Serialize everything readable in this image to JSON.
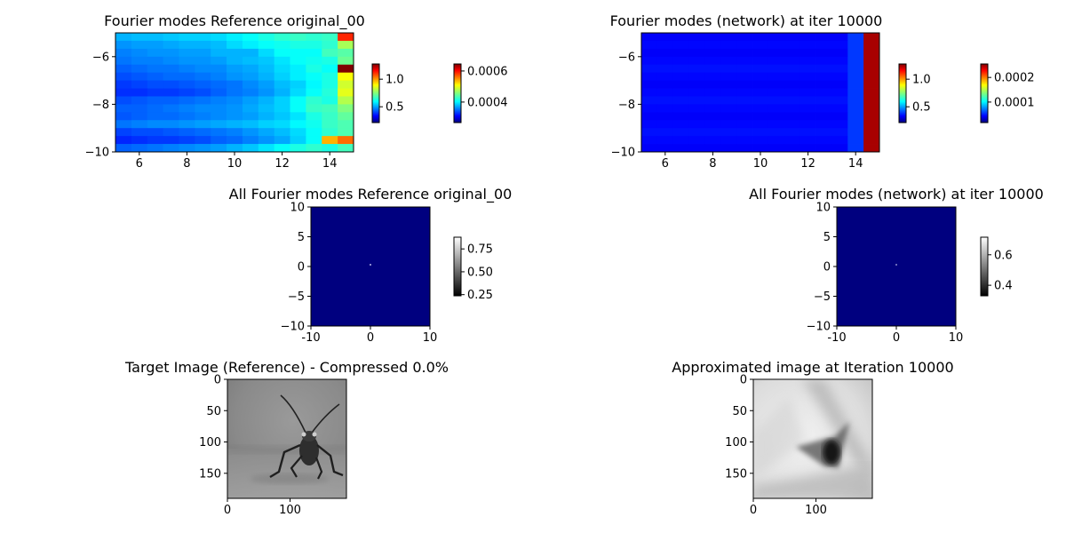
{
  "figure": {
    "panel_titles": {
      "ref_modes": "Fourier modes Reference original_00",
      "net_modes": "Fourier modes (network) at iter 10000",
      "ref_all": "All Fourier modes Reference original_00",
      "net_all": "All Fourier modes (network) at iter 10000",
      "ref_img": "Target Image (Reference) - Compressed 0.0%",
      "net_img": "Approximated image at Iteration 10000"
    },
    "colormap_modes": "jet",
    "colormap_gray": "gray",
    "background_blue": "#00007f"
  },
  "chart_data": [
    {
      "type": "heatmap",
      "id": "ref_modes",
      "title": "Fourier modes Reference original_00",
      "xlim": [
        5,
        15
      ],
      "ylim": [
        -10,
        -5
      ],
      "xticks": [
        6,
        8,
        10,
        12,
        14
      ],
      "yticks": [
        -6,
        -8,
        -10
      ],
      "cols": 15,
      "rows": 15,
      "grid": [
        [
          0.3,
          0.31,
          0.31,
          0.32,
          0.33,
          0.33,
          0.34,
          0.36,
          0.38,
          0.4,
          0.42,
          0.43,
          0.42,
          0.43,
          0.84
        ],
        [
          0.27,
          0.28,
          0.28,
          0.29,
          0.3,
          0.3,
          0.31,
          0.34,
          0.36,
          0.38,
          0.39,
          0.4,
          0.4,
          0.42,
          0.54
        ],
        [
          0.25,
          0.26,
          0.27,
          0.27,
          0.28,
          0.28,
          0.3,
          0.3,
          0.3,
          0.34,
          0.38,
          0.38,
          0.38,
          0.44,
          0.46
        ],
        [
          0.24,
          0.25,
          0.25,
          0.26,
          0.27,
          0.27,
          0.28,
          0.3,
          0.31,
          0.32,
          0.35,
          0.38,
          0.39,
          0.4,
          0.48
        ],
        [
          0.22,
          0.23,
          0.24,
          0.24,
          0.25,
          0.26,
          0.26,
          0.28,
          0.29,
          0.31,
          0.34,
          0.36,
          0.4,
          0.38,
          1.0
        ],
        [
          0.2,
          0.21,
          0.22,
          0.23,
          0.23,
          0.24,
          0.25,
          0.27,
          0.28,
          0.3,
          0.33,
          0.36,
          0.38,
          0.4,
          0.62
        ],
        [
          0.18,
          0.19,
          0.2,
          0.2,
          0.21,
          0.22,
          0.23,
          0.24,
          0.26,
          0.28,
          0.31,
          0.33,
          0.37,
          0.4,
          0.58
        ],
        [
          0.17,
          0.17,
          0.18,
          0.18,
          0.19,
          0.2,
          0.22,
          0.24,
          0.25,
          0.27,
          0.3,
          0.34,
          0.38,
          0.41,
          0.6
        ],
        [
          0.2,
          0.21,
          0.22,
          0.22,
          0.23,
          0.24,
          0.25,
          0.26,
          0.28,
          0.3,
          0.33,
          0.38,
          0.42,
          0.4,
          0.55
        ],
        [
          0.22,
          0.22,
          0.23,
          0.24,
          0.25,
          0.26,
          0.26,
          0.27,
          0.29,
          0.31,
          0.33,
          0.38,
          0.43,
          0.44,
          0.5
        ],
        [
          0.21,
          0.22,
          0.23,
          0.23,
          0.24,
          0.25,
          0.26,
          0.27,
          0.28,
          0.3,
          0.32,
          0.35,
          0.4,
          0.43,
          0.47
        ],
        [
          0.24,
          0.25,
          0.26,
          0.26,
          0.27,
          0.28,
          0.29,
          0.3,
          0.31,
          0.33,
          0.34,
          0.37,
          0.39,
          0.43,
          0.45
        ],
        [
          0.19,
          0.2,
          0.2,
          0.21,
          0.22,
          0.23,
          0.24,
          0.25,
          0.27,
          0.29,
          0.31,
          0.34,
          0.38,
          0.42,
          0.45
        ],
        [
          0.16,
          0.17,
          0.18,
          0.18,
          0.19,
          0.2,
          0.22,
          0.23,
          0.25,
          0.27,
          0.29,
          0.33,
          0.38,
          0.7,
          0.77
        ],
        [
          0.22,
          0.23,
          0.24,
          0.25,
          0.26,
          0.27,
          0.28,
          0.3,
          0.32,
          0.35,
          0.38,
          0.4,
          0.42,
          0.4,
          0.44
        ]
      ],
      "colorbars": [
        {
          "ticks": [
            "1.0",
            "0.5"
          ],
          "tick_fracs": [
            0.74,
            0.27
          ],
          "cmap": "jet"
        },
        {
          "ticks": [
            "0.0006",
            "0.0004"
          ],
          "tick_fracs": [
            0.88,
            0.35
          ],
          "cmap": "jet"
        }
      ]
    },
    {
      "type": "heatmap",
      "id": "net_modes",
      "title": "Fourier modes (network) at iter 10000",
      "xlim": [
        5,
        15
      ],
      "ylim": [
        -10,
        -5
      ],
      "xticks": [
        6,
        8,
        10,
        12,
        14
      ],
      "yticks": [
        -6,
        -8,
        -10
      ],
      "cols": 15,
      "rows": 15,
      "column_profile": [
        0.12,
        0.12,
        0.12,
        0.12,
        0.12,
        0.12,
        0.12,
        0.12,
        0.12,
        0.12,
        0.12,
        0.12,
        0.12,
        0.18,
        0.96
      ],
      "row_variation": [
        0.0,
        0.01,
        0.0,
        0.01,
        0.02,
        0.01,
        0.0,
        0.01,
        0.02,
        0.01,
        0.0,
        0.01,
        0.02,
        0.01,
        0.0
      ],
      "colorbars": [
        {
          "ticks": [
            "1.0",
            "0.5"
          ],
          "tick_fracs": [
            0.74,
            0.27
          ],
          "cmap": "jet"
        },
        {
          "ticks": [
            "0.0002",
            "0.0001"
          ],
          "tick_fracs": [
            0.77,
            0.35
          ],
          "cmap": "jet"
        }
      ]
    },
    {
      "type": "heatmap",
      "id": "ref_all",
      "title": "All Fourier modes Reference original_00",
      "xlim": [
        -10,
        10
      ],
      "ylim": [
        -10,
        10
      ],
      "xticks": [
        -10,
        0,
        10
      ],
      "yticks": [
        10,
        5,
        0,
        -5,
        -10
      ],
      "colorbar": {
        "ticks": [
          "0.75",
          "0.50",
          "0.25"
        ],
        "tick_fracs": [
          0.8,
          0.41,
          0.02
        ],
        "cmap": "gray"
      }
    },
    {
      "type": "heatmap",
      "id": "net_all",
      "title": "All Fourier modes (network) at iter 10000",
      "xlim": [
        -10,
        10
      ],
      "ylim": [
        -10,
        10
      ],
      "xticks": [
        -10,
        0,
        10
      ],
      "yticks": [
        10,
        5,
        0,
        -5,
        -10
      ],
      "colorbar": {
        "ticks": [
          "0.6",
          "0.4"
        ],
        "tick_fracs": [
          0.7,
          0.18
        ],
        "cmap": "gray"
      }
    },
    {
      "type": "image",
      "id": "ref_img",
      "title": "Target Image (Reference) - Compressed 0.0%",
      "size": [
        190,
        190
      ],
      "xticks": [
        0,
        100
      ],
      "yticks": [
        0,
        50,
        100,
        150
      ],
      "content": "grayscale photo of an insect with long antennae"
    },
    {
      "type": "image",
      "id": "net_img",
      "title": "Approximated image at Iteration 10000",
      "size": [
        190,
        190
      ],
      "xticks": [
        0,
        100
      ],
      "yticks": [
        0,
        50,
        100,
        150
      ],
      "content": "blurry grayscale approximation with dark blob"
    }
  ]
}
